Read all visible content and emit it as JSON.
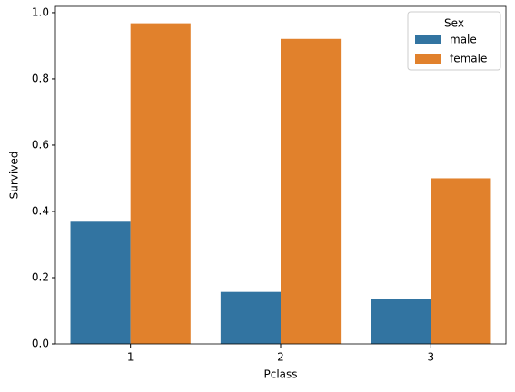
{
  "chart_data": {
    "type": "bar",
    "x_label": "Pclass",
    "y_label": "Survived",
    "categories": [
      "1",
      "2",
      "3"
    ],
    "series": [
      {
        "name": "male",
        "color": "#3274a1",
        "values": [
          0.369,
          0.157,
          0.135
        ]
      },
      {
        "name": "female",
        "color": "#e1812c",
        "values": [
          0.968,
          0.921,
          0.5
        ]
      }
    ],
    "legend_title": "Sex",
    "legend_position": "upper right",
    "ylim": [
      0,
      1.019
    ],
    "yticks": [
      {
        "value": 0,
        "label": "0.0"
      },
      0.2,
      0.4,
      0.6,
      0.8,
      {
        "value": 1,
        "label": "1.0"
      }
    ],
    "grid": false
  }
}
